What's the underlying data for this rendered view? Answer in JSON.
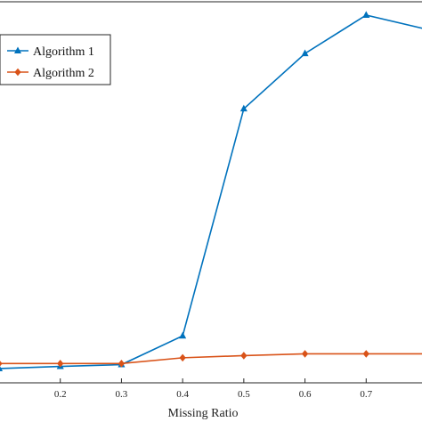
{
  "chart_data": {
    "type": "line",
    "title": "",
    "xlabel": "Missing Ratio",
    "ylabel": "",
    "x": [
      0.1,
      0.2,
      0.3,
      0.4,
      0.5,
      0.6,
      0.7,
      0.8
    ],
    "x_ticks": [
      "0.2",
      "0.3",
      "0.4",
      "0.5",
      "0.6",
      "0.7"
    ],
    "xlim": [
      0.1,
      0.8
    ],
    "ylim": [
      0,
      1
    ],
    "grid": false,
    "legend_position": "top-left",
    "series": [
      {
        "name": "Algorithm 1",
        "color": "#0072BD",
        "marker": "triangle",
        "values": [
          0.015,
          0.021,
          0.026,
          0.106,
          0.739,
          0.893,
          1.0,
          0.96
        ]
      },
      {
        "name": "Algorithm 2",
        "color": "#D95319",
        "marker": "diamond",
        "values": [
          0.029,
          0.029,
          0.029,
          0.045,
          0.051,
          0.056,
          0.056,
          0.056
        ]
      }
    ]
  }
}
